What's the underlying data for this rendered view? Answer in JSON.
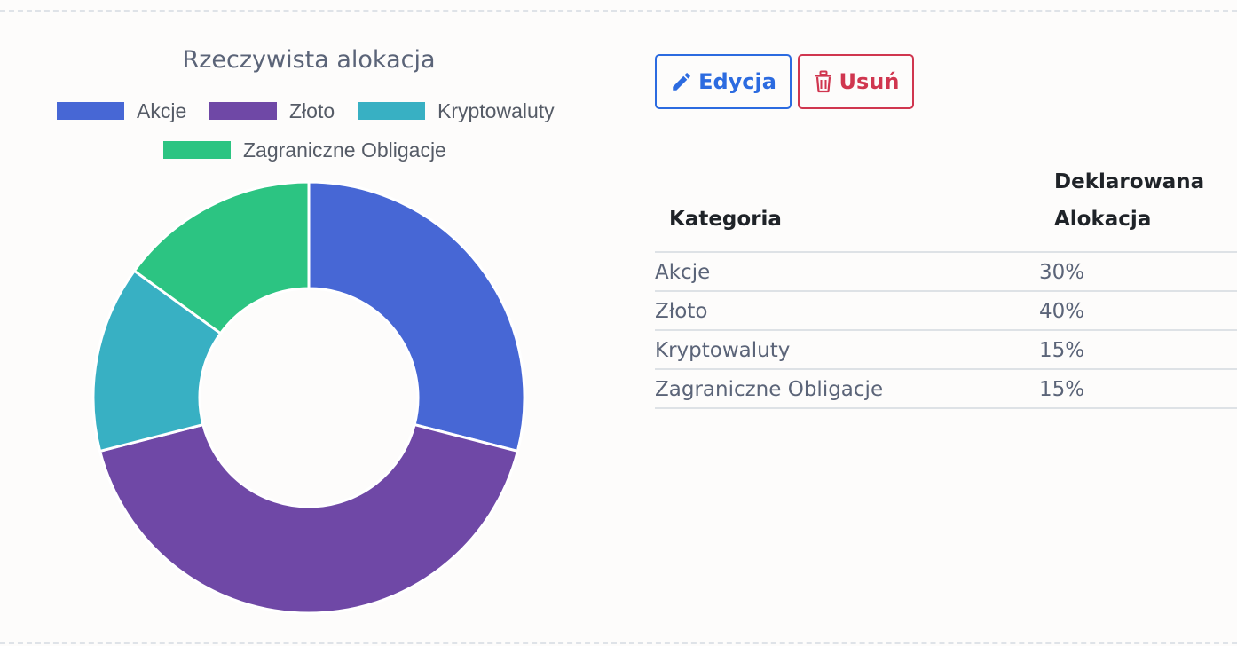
{
  "chart_data": {
    "type": "pie",
    "title": "Rzeczywista alokacja",
    "categories": [
      "Akcje",
      "Złoto",
      "Kryptowaluty",
      "Zagraniczne Obligacje"
    ],
    "values": [
      29,
      42,
      14,
      15
    ],
    "colors": [
      "#4767d5",
      "#6f48a6",
      "#38b0c3",
      "#2cc482"
    ],
    "legend_position": "top"
  },
  "actions": {
    "edit_label": "Edycja",
    "delete_label": "Usuń",
    "edit_icon": "pencil-icon",
    "delete_icon": "trash-icon"
  },
  "table": {
    "header_category": "Kategoria",
    "header_alloc_line1": "Deklarowana",
    "header_alloc_line2": "Alokacja",
    "rows": [
      {
        "category": "Akcje",
        "allocation": "30%"
      },
      {
        "category": "Złoto",
        "allocation": "40%"
      },
      {
        "category": "Kryptowaluty",
        "allocation": "15%"
      },
      {
        "category": "Zagraniczne Obligacje",
        "allocation": "15%"
      }
    ]
  }
}
